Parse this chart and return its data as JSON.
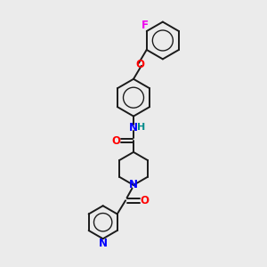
{
  "background_color": "#ebebeb",
  "bond_color": "#1a1a1a",
  "N_color": "#0000ff",
  "O_color": "#ff0000",
  "F_color": "#ee00ee",
  "NH_color": "#008b8b",
  "figsize": [
    3.0,
    3.0
  ],
  "dpi": 100,
  "xlim": [
    0,
    10
  ],
  "ylim": [
    0,
    10
  ]
}
